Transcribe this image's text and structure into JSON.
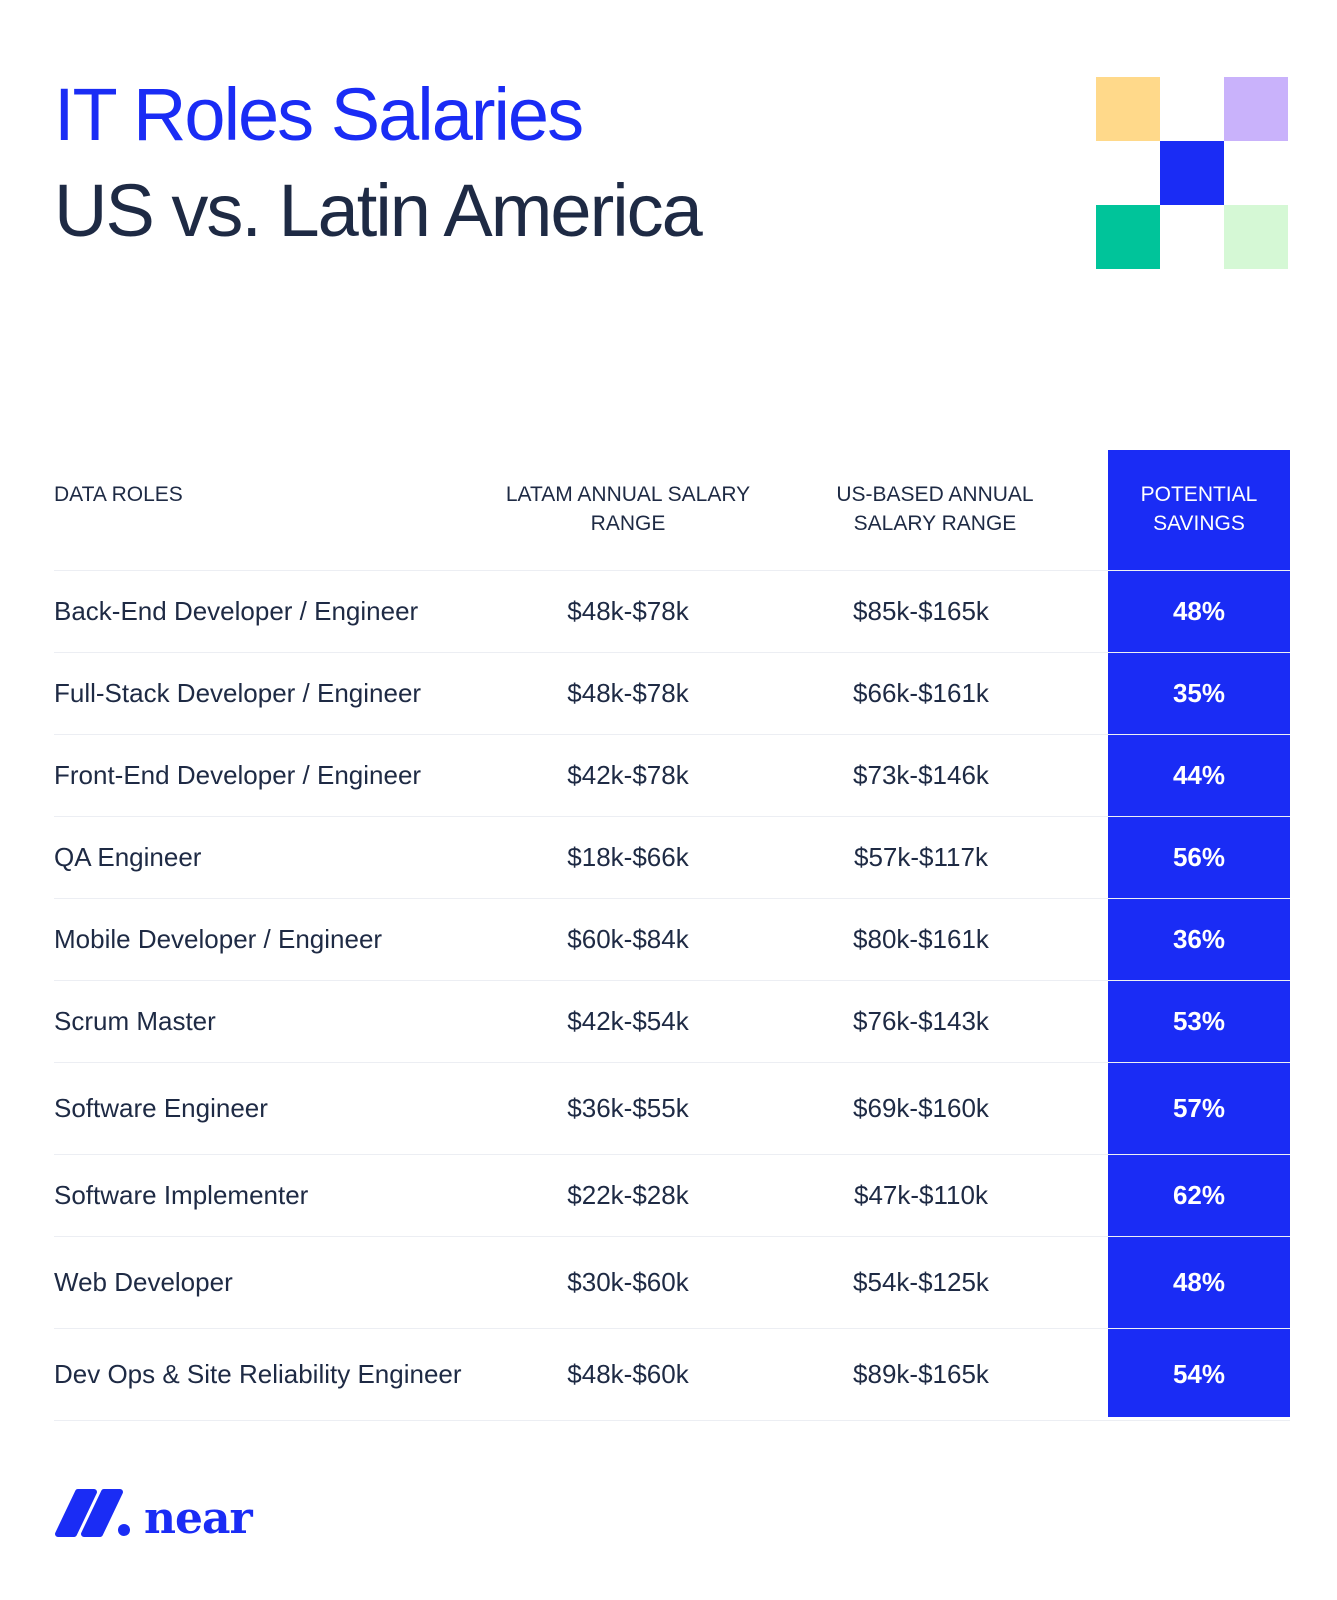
{
  "header": {
    "title": "IT Roles Salaries",
    "subtitle": "US vs. Latin America"
  },
  "decoration": {
    "squares": [
      {
        "name": "yellow-square",
        "color": "#ffd98a"
      },
      {
        "name": "lavender-square",
        "color": "#c9b2fb"
      },
      {
        "name": "blue-square",
        "color": "#1a2cf5"
      },
      {
        "name": "teal-square",
        "color": "#00c49a"
      },
      {
        "name": "mint-square",
        "color": "#d5f8d5"
      }
    ]
  },
  "table": {
    "columns": {
      "role": "DATA ROLES",
      "latam": "LATAM ANNUAL SALARY RANGE",
      "us": "US-BASED ANNUAL SALARY RANGE",
      "savings": "POTENTIAL SAVINGS"
    },
    "rows": [
      {
        "role": "Back-End Developer / Engineer",
        "latam": "$48k-$78k",
        "us": "$85k-$165k",
        "savings": "48%"
      },
      {
        "role": "Full-Stack Developer / Engineer",
        "latam": "$48k-$78k",
        "us": "$66k-$161k",
        "savings": "35%"
      },
      {
        "role": "Front-End Developer / Engineer",
        "latam": "$42k-$78k",
        "us": "$73k-$146k",
        "savings": "44%"
      },
      {
        "role": "QA Engineer",
        "latam": "$18k-$66k",
        "us": "$57k-$117k",
        "savings": "56%"
      },
      {
        "role": "Mobile Developer / Engineer",
        "latam": "$60k-$84k",
        "us": "$80k-$161k",
        "savings": "36%"
      },
      {
        "role": "Scrum Master",
        "latam": "$42k-$54k",
        "us": "$76k-$143k",
        "savings": "53%"
      },
      {
        "role": "Software Engineer",
        "latam": "$36k-$55k",
        "us": "$69k-$160k",
        "savings": "57%"
      },
      {
        "role": "Software Implementer",
        "latam": "$22k-$28k",
        "us": "$47k-$110k",
        "savings": "62%"
      },
      {
        "role": "Web Developer",
        "latam": "$30k-$60k",
        "us": "$54k-$125k",
        "savings": "48%"
      },
      {
        "role": "Dev Ops & Site Reliability Engineer",
        "latam": "$48k-$60k",
        "us": "$89k-$165k",
        "savings": "54%"
      }
    ]
  },
  "brand": {
    "name": "near",
    "color": "#1a2cf5"
  },
  "colors": {
    "accent_blue": "#1a2cf5",
    "text_dark": "#1e2a44"
  }
}
